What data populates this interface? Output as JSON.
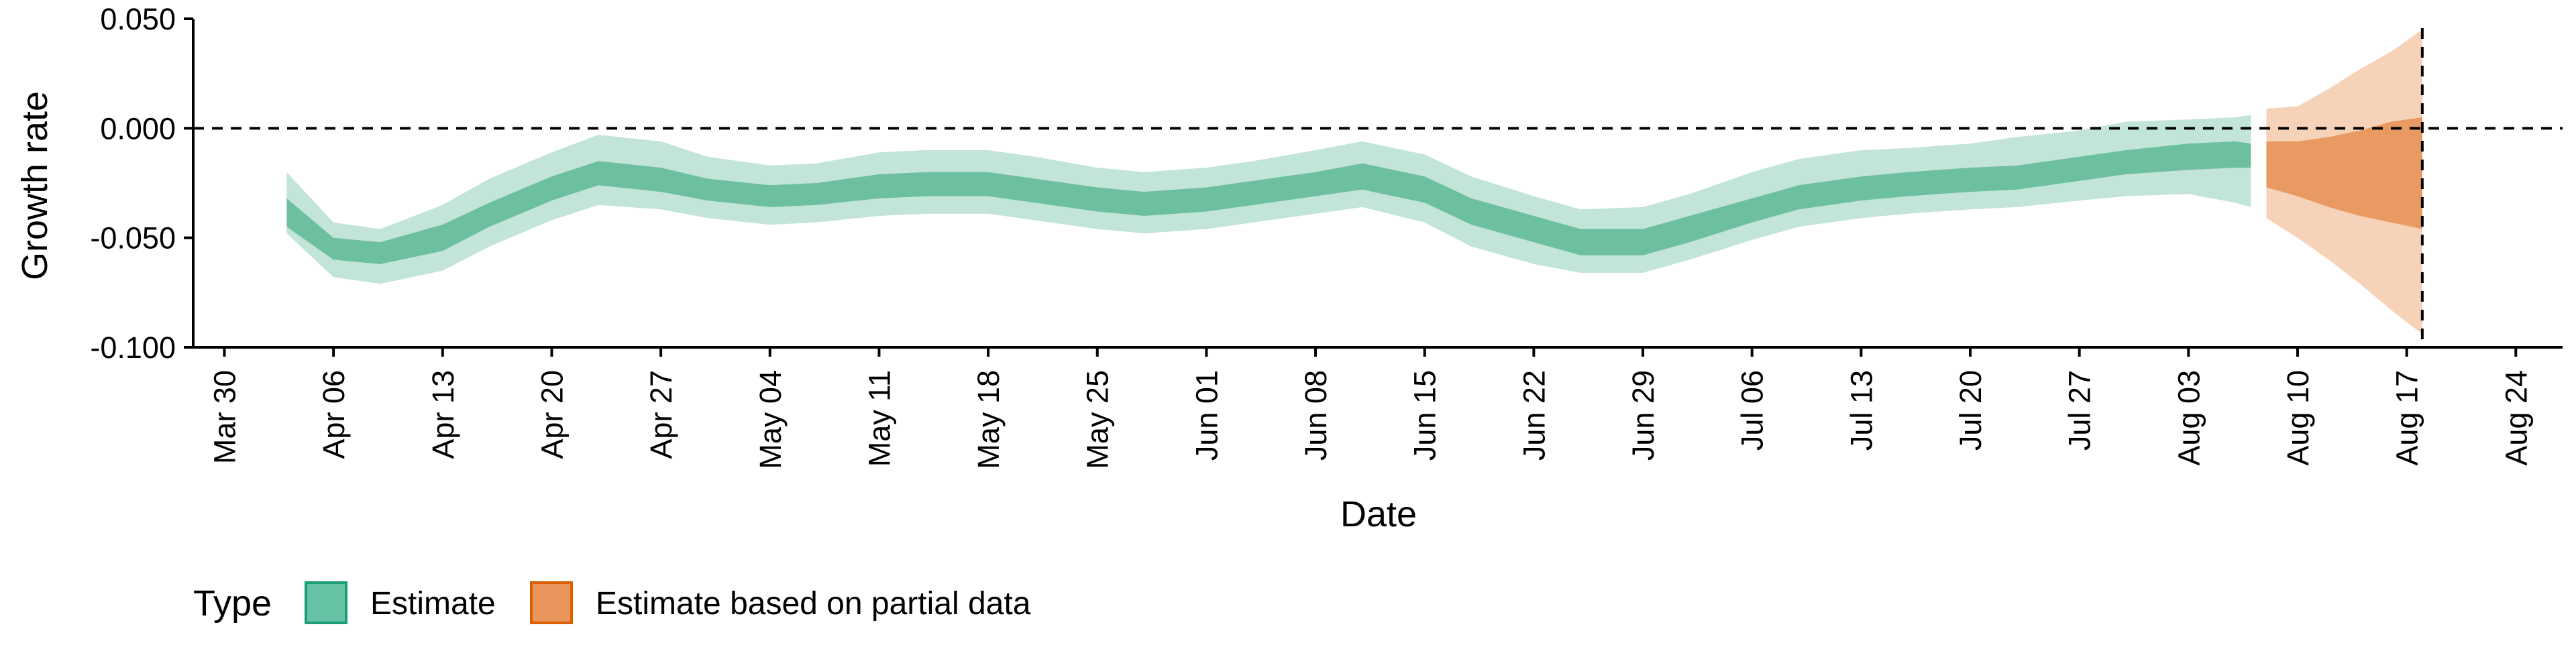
{
  "chart_data": {
    "type": "area",
    "xlabel": "Date",
    "ylabel": "Growth rate",
    "ylim": [
      -0.1,
      0.05
    ],
    "xlim": [
      "2020-03-28",
      "2020-08-27"
    ],
    "y_ticks": [
      {
        "value": -0.1,
        "label": "-0.100"
      },
      {
        "value": -0.05,
        "label": "-0.050"
      },
      {
        "value": 0.0,
        "label": "0.000"
      },
      {
        "value": 0.05,
        "label": "0.050"
      }
    ],
    "x_ticks": [
      {
        "date": "2020-03-30",
        "label": "Mar 30"
      },
      {
        "date": "2020-04-06",
        "label": "Apr 06"
      },
      {
        "date": "2020-04-13",
        "label": "Apr 13"
      },
      {
        "date": "2020-04-20",
        "label": "Apr 20"
      },
      {
        "date": "2020-04-27",
        "label": "Apr 27"
      },
      {
        "date": "2020-05-04",
        "label": "May 04"
      },
      {
        "date": "2020-05-11",
        "label": "May 11"
      },
      {
        "date": "2020-05-18",
        "label": "May 18"
      },
      {
        "date": "2020-05-25",
        "label": "May 25"
      },
      {
        "date": "2020-06-01",
        "label": "Jun 01"
      },
      {
        "date": "2020-06-08",
        "label": "Jun 08"
      },
      {
        "date": "2020-06-15",
        "label": "Jun 15"
      },
      {
        "date": "2020-06-22",
        "label": "Jun 22"
      },
      {
        "date": "2020-06-29",
        "label": "Jun 29"
      },
      {
        "date": "2020-07-06",
        "label": "Jul 06"
      },
      {
        "date": "2020-07-13",
        "label": "Jul 13"
      },
      {
        "date": "2020-07-20",
        "label": "Jul 20"
      },
      {
        "date": "2020-07-27",
        "label": "Jul 27"
      },
      {
        "date": "2020-08-03",
        "label": "Aug 03"
      },
      {
        "date": "2020-08-10",
        "label": "Aug 10"
      },
      {
        "date": "2020-08-17",
        "label": "Aug 17"
      },
      {
        "date": "2020-08-24",
        "label": "Aug 24"
      }
    ],
    "reference_lines": {
      "horizontal_y": 0,
      "vertical_date": "2020-08-18",
      "style": "dashed"
    },
    "legend": {
      "title": "Type",
      "position": "bottom-left",
      "entries": [
        {
          "label": "Estimate",
          "fill": "#66c2a5",
          "border": "#1b9e77"
        },
        {
          "label": "Estimate based on partial data",
          "fill": "#e8965c",
          "border": "#d95f02"
        }
      ]
    },
    "colors": {
      "estimate_outer": "#c2e4d9",
      "estimate_inner": "#6cbf9f",
      "partial_outer": "#f6d2b8",
      "partial_inner": "#e89a62"
    },
    "series": [
      {
        "name": "Estimate",
        "band_type": "estimate",
        "x": [
          "2020-04-03",
          "2020-04-06",
          "2020-04-09",
          "2020-04-13",
          "2020-04-16",
          "2020-04-20",
          "2020-04-23",
          "2020-04-27",
          "2020-04-30",
          "2020-05-04",
          "2020-05-07",
          "2020-05-11",
          "2020-05-14",
          "2020-05-18",
          "2020-05-21",
          "2020-05-25",
          "2020-05-28",
          "2020-06-01",
          "2020-06-04",
          "2020-06-08",
          "2020-06-11",
          "2020-06-15",
          "2020-06-18",
          "2020-06-22",
          "2020-06-25",
          "2020-06-29",
          "2020-07-02",
          "2020-07-06",
          "2020-07-09",
          "2020-07-13",
          "2020-07-16",
          "2020-07-20",
          "2020-07-23",
          "2020-07-27",
          "2020-07-30",
          "2020-08-03",
          "2020-08-06",
          "2020-08-07"
        ],
        "inner_upper": [
          -0.032,
          -0.05,
          -0.052,
          -0.044,
          -0.034,
          -0.022,
          -0.015,
          -0.018,
          -0.023,
          -0.026,
          -0.025,
          -0.021,
          -0.02,
          -0.02,
          -0.023,
          -0.027,
          -0.029,
          -0.027,
          -0.024,
          -0.02,
          -0.016,
          -0.022,
          -0.032,
          -0.04,
          -0.046,
          -0.046,
          -0.04,
          -0.032,
          -0.026,
          -0.022,
          -0.02,
          -0.018,
          -0.017,
          -0.013,
          -0.01,
          -0.007,
          -0.006,
          -0.007
        ],
        "inner_lower": [
          -0.045,
          -0.06,
          -0.062,
          -0.056,
          -0.045,
          -0.033,
          -0.026,
          -0.029,
          -0.033,
          -0.036,
          -0.035,
          -0.032,
          -0.031,
          -0.031,
          -0.034,
          -0.038,
          -0.04,
          -0.038,
          -0.035,
          -0.031,
          -0.028,
          -0.034,
          -0.044,
          -0.052,
          -0.058,
          -0.058,
          -0.052,
          -0.043,
          -0.037,
          -0.033,
          -0.031,
          -0.029,
          -0.028,
          -0.024,
          -0.021,
          -0.019,
          -0.018,
          -0.018
        ],
        "outer_upper": [
          -0.02,
          -0.043,
          -0.046,
          -0.035,
          -0.023,
          -0.011,
          -0.003,
          -0.006,
          -0.013,
          -0.017,
          -0.016,
          -0.011,
          -0.01,
          -0.01,
          -0.013,
          -0.018,
          -0.02,
          -0.018,
          -0.015,
          -0.01,
          -0.006,
          -0.012,
          -0.022,
          -0.031,
          -0.037,
          -0.036,
          -0.03,
          -0.02,
          -0.014,
          -0.01,
          -0.009,
          -0.007,
          -0.004,
          -0.001,
          0.003,
          0.004,
          0.005,
          0.006
        ],
        "outer_lower": [
          -0.048,
          -0.068,
          -0.071,
          -0.065,
          -0.054,
          -0.042,
          -0.035,
          -0.037,
          -0.041,
          -0.044,
          -0.043,
          -0.04,
          -0.039,
          -0.039,
          -0.042,
          -0.046,
          -0.048,
          -0.046,
          -0.043,
          -0.039,
          -0.036,
          -0.043,
          -0.054,
          -0.062,
          -0.066,
          -0.066,
          -0.06,
          -0.051,
          -0.045,
          -0.041,
          -0.039,
          -0.037,
          -0.036,
          -0.033,
          -0.031,
          -0.03,
          -0.034,
          -0.036
        ]
      },
      {
        "name": "Estimate based on partial data",
        "band_type": "partial",
        "x": [
          "2020-08-08",
          "2020-08-10",
          "2020-08-12",
          "2020-08-14",
          "2020-08-16",
          "2020-08-18"
        ],
        "inner_upper": [
          -0.006,
          -0.006,
          -0.004,
          -0.001,
          0.003,
          0.005
        ],
        "inner_lower": [
          -0.027,
          -0.031,
          -0.036,
          -0.04,
          -0.043,
          -0.046
        ],
        "outer_upper": [
          0.009,
          0.01,
          0.018,
          0.027,
          0.035,
          0.045
        ],
        "outer_lower": [
          -0.041,
          -0.05,
          -0.06,
          -0.071,
          -0.083,
          -0.094
        ]
      }
    ]
  }
}
